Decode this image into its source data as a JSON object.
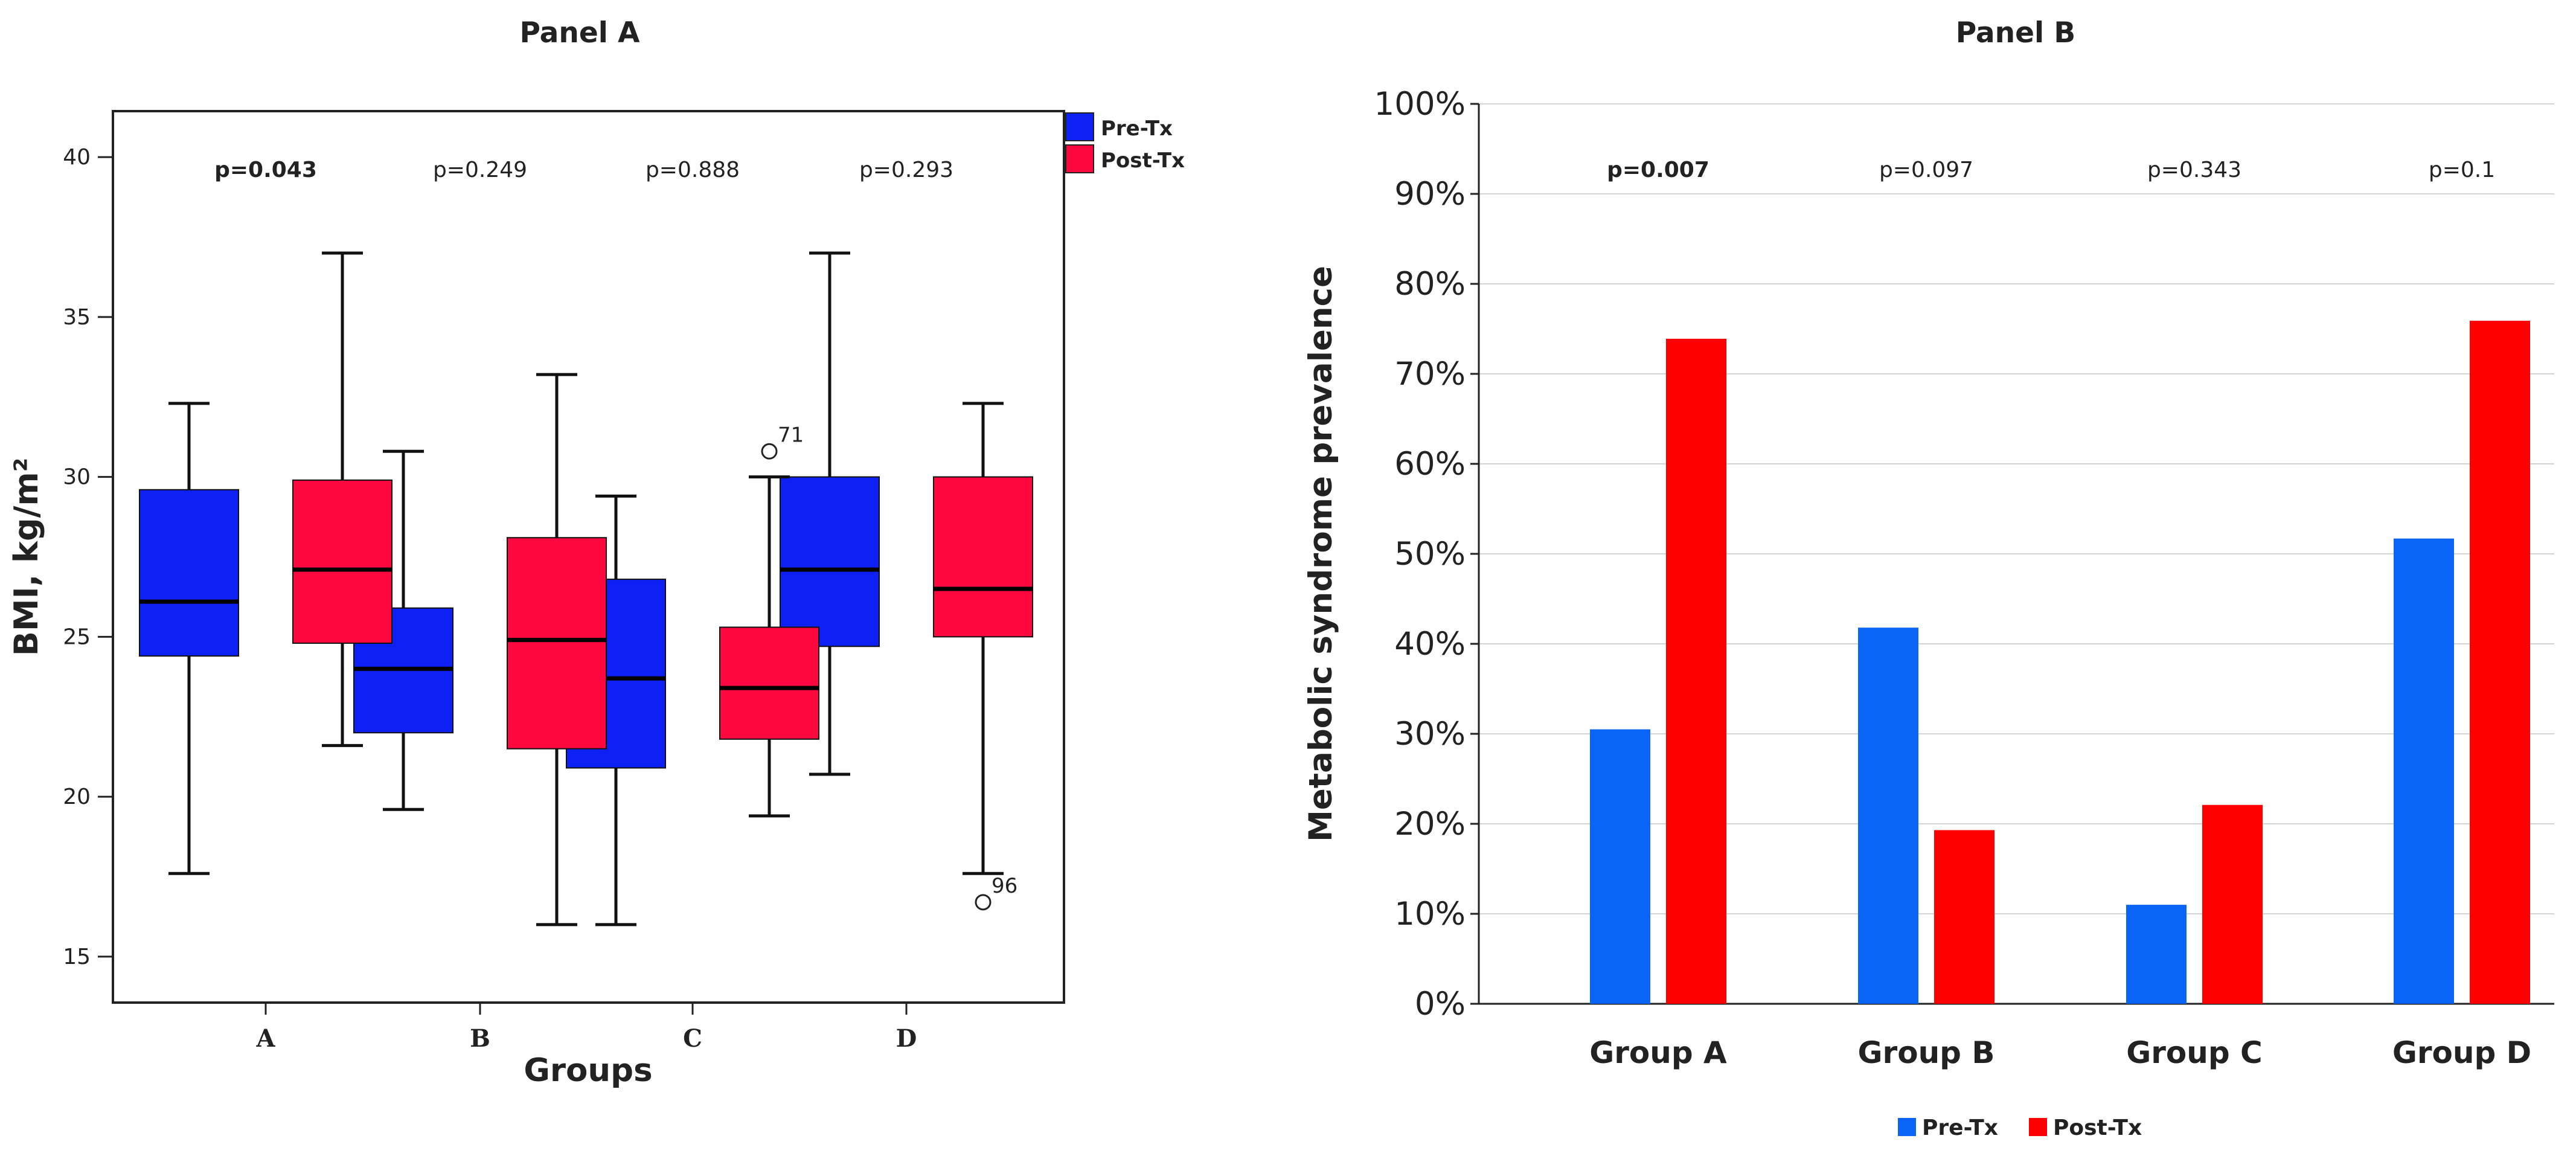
{
  "chart_data": [
    {
      "type": "boxplot",
      "title": "Panel A",
      "xlabel": "Groups",
      "ylabel": "BMI, kg/m²",
      "ylim": [
        13.6,
        41.4
      ],
      "yticks": [
        15,
        20,
        25,
        30,
        35,
        40
      ],
      "categories": [
        "A",
        "B",
        "C",
        "D"
      ],
      "legend": [
        {
          "name": "Pre-Tx",
          "color": "#0d21f5"
        },
        {
          "name": "Post-Tx",
          "color": "#ff0840"
        }
      ],
      "pvalues": [
        {
          "text": "p=0.043",
          "bold": true
        },
        {
          "text": "p=0.249",
          "bold": false
        },
        {
          "text": "p=0.888",
          "bold": false
        },
        {
          "text": "p=0.293",
          "bold": false
        }
      ],
      "series": [
        {
          "name": "Pre-Tx",
          "boxes": [
            {
              "whisker_low": 17.6,
              "q1": 24.4,
              "median": 26.1,
              "q3": 29.6,
              "whisker_high": 32.3
            },
            {
              "whisker_low": 19.6,
              "q1": 22.0,
              "median": 24.0,
              "q3": 25.9,
              "whisker_high": 30.8
            },
            {
              "whisker_low": 16.0,
              "q1": 20.9,
              "median": 23.7,
              "q3": 26.8,
              "whisker_high": 29.4
            },
            {
              "whisker_low": 20.7,
              "q1": 24.7,
              "median": 27.1,
              "q3": 30.0,
              "whisker_high": 37.0
            }
          ]
        },
        {
          "name": "Post-Tx",
          "boxes": [
            {
              "whisker_low": 21.6,
              "q1": 24.8,
              "median": 27.1,
              "q3": 29.9,
              "whisker_high": 37.0
            },
            {
              "whisker_low": 16.0,
              "q1": 21.5,
              "median": 24.9,
              "q3": 28.1,
              "whisker_high": 33.2
            },
            {
              "whisker_low": 19.4,
              "q1": 21.8,
              "median": 23.4,
              "q3": 25.3,
              "whisker_high": 30.0
            },
            {
              "whisker_low": 17.6,
              "q1": 25.0,
              "median": 26.5,
              "q3": 30.0,
              "whisker_high": 32.3
            }
          ]
        }
      ],
      "outliers": [
        {
          "series": "Post-Tx",
          "category": "C",
          "value": 30.8,
          "label": "71"
        },
        {
          "series": "Post-Tx",
          "category": "D",
          "value": 16.7,
          "label": "96"
        }
      ]
    },
    {
      "type": "bar",
      "title": "Panel B",
      "xlabel": "",
      "ylabel": "Metabolic syndrome prevalence",
      "ylim": [
        0,
        100
      ],
      "yticks": [
        "0%",
        "10%",
        "20%",
        "30%",
        "40%",
        "50%",
        "60%",
        "70%",
        "80%",
        "90%",
        "100%"
      ],
      "grid": true,
      "categories": [
        "Group A",
        "Group B",
        "Group C",
        "Group D"
      ],
      "pvalues": [
        {
          "text": "p=0.007",
          "bold": true
        },
        {
          "text": "p=0.097",
          "bold": false
        },
        {
          "text": "p=0.343",
          "bold": false
        },
        {
          "text": "p=0.1",
          "bold": false
        }
      ],
      "series": [
        {
          "name": "Pre-Tx",
          "color": "#0a64f5",
          "values": [
            30.5,
            41.8,
            11.0,
            51.7
          ]
        },
        {
          "name": "Post-Tx",
          "color": "#ff0000",
          "values": [
            73.9,
            19.3,
            22.1,
            75.9
          ]
        }
      ],
      "legend_position": "bottom"
    }
  ]
}
